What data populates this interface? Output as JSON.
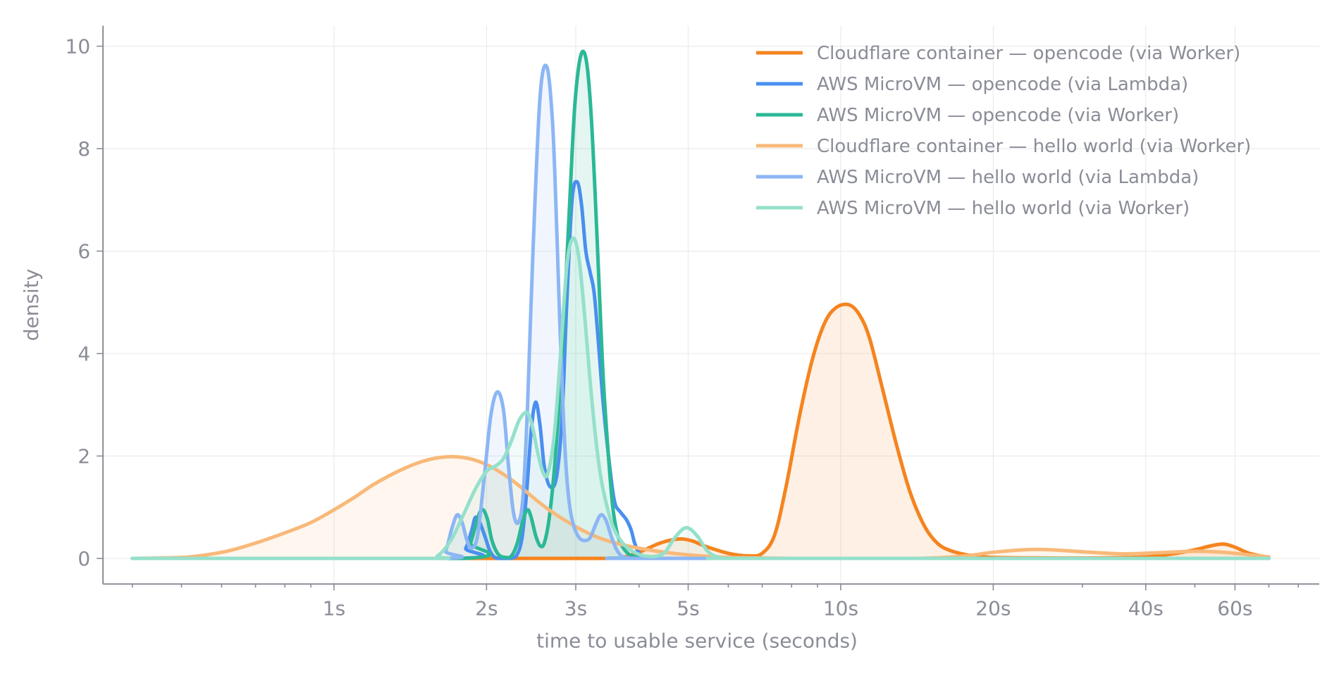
{
  "chart_data": {
    "type": "area",
    "title": "",
    "xlabel": "time to usable service (seconds)",
    "ylabel": "density",
    "x_scale": "log",
    "xlim": [
      0.35,
      88
    ],
    "ylim": [
      -0.5,
      10.4
    ],
    "x_ticks": [
      {
        "value": 1,
        "label": "1s"
      },
      {
        "value": 2,
        "label": "2s"
      },
      {
        "value": 3,
        "label": "3s"
      },
      {
        "value": 5,
        "label": "5s"
      },
      {
        "value": 10,
        "label": "10s"
      },
      {
        "value": 20,
        "label": "20s"
      },
      {
        "value": 40,
        "label": "40s"
      },
      {
        "value": 60,
        "label": "60s"
      }
    ],
    "y_ticks": [
      {
        "value": 0,
        "label": "0"
      },
      {
        "value": 2,
        "label": "2"
      },
      {
        "value": 4,
        "label": "4"
      },
      {
        "value": 6,
        "label": "6"
      },
      {
        "value": 8,
        "label": "8"
      },
      {
        "value": 10,
        "label": "10"
      }
    ],
    "grid": true,
    "legend_position": "top-right",
    "series": [
      {
        "name": "Cloudflare container — opencode (via Worker)",
        "color": "#f5841f",
        "width": 5,
        "fill": true,
        "x": [
          0.4,
          3.5,
          3.7,
          4.0,
          4.4,
          4.8,
          5.1,
          5.4,
          6.0,
          6.6,
          7.0,
          7.4,
          7.8,
          8.3,
          8.8,
          9.3,
          9.8,
          10.4,
          10.9,
          11.4,
          12.1,
          12.9,
          13.7,
          14.6,
          15.5,
          16.5,
          18.0,
          20.0,
          25.0,
          32.0,
          40.0,
          46.0,
          50.0,
          54.0,
          57.0,
          60.0,
          64.0,
          70.0
        ],
        "y": [
          0,
          0,
          0.02,
          0.12,
          0.3,
          0.38,
          0.34,
          0.24,
          0.1,
          0.05,
          0.1,
          0.45,
          1.4,
          2.8,
          3.9,
          4.6,
          4.9,
          4.95,
          4.75,
          4.3,
          3.3,
          2.2,
          1.3,
          0.65,
          0.3,
          0.15,
          0.06,
          0.02,
          0.01,
          0.01,
          0.03,
          0.1,
          0.17,
          0.25,
          0.28,
          0.22,
          0.1,
          0.02
        ]
      },
      {
        "name": "AWS MicroVM — opencode (via Lambda)",
        "color": "#4a8ff0",
        "width": 5,
        "fill": false,
        "x": [
          0.4,
          1.75,
          1.82,
          1.87,
          1.9,
          1.94,
          1.99,
          2.03,
          2.07,
          2.12,
          2.17,
          2.22,
          2.29,
          2.35,
          2.4,
          2.45,
          2.5,
          2.55,
          2.6,
          2.67,
          2.75,
          2.82,
          2.88,
          2.95,
          3.02,
          3.08,
          3.14,
          3.2,
          3.26,
          3.32,
          3.4,
          3.5,
          3.58,
          3.68,
          3.78,
          3.86,
          3.92,
          4.0,
          4.1,
          4.2,
          4.3,
          4.45,
          4.6,
          4.8,
          5.0,
          5.5,
          70.0
        ],
        "y": [
          0,
          0,
          0.2,
          0.55,
          0.8,
          0.7,
          0.4,
          0.15,
          0.03,
          0,
          0,
          0,
          0.05,
          0.4,
          1.3,
          2.5,
          3.05,
          2.6,
          1.8,
          1.4,
          1.6,
          2.8,
          5.0,
          7.0,
          7.35,
          6.9,
          6.0,
          5.6,
          5.2,
          4.3,
          3.0,
          1.8,
          1.1,
          0.9,
          0.75,
          0.55,
          0.3,
          0.1,
          0.02,
          0,
          0,
          0,
          0,
          0,
          0,
          0,
          0
        ]
      },
      {
        "name": "AWS MicroVM — opencode (via Worker)",
        "color": "#2bb896",
        "width": 5,
        "fill": true,
        "x": [
          0.4,
          1.8,
          1.86,
          1.91,
          1.94,
          1.97,
          2.01,
          2.05,
          2.11,
          2.18,
          2.24,
          2.3,
          2.36,
          2.41,
          2.45,
          2.5,
          2.55,
          2.6,
          2.66,
          2.73,
          2.8,
          2.86,
          2.92,
          2.98,
          3.04,
          3.1,
          3.16,
          3.22,
          3.28,
          3.34,
          3.4,
          3.48,
          3.55,
          3.62,
          3.7,
          3.8,
          3.9,
          4.0,
          4.15,
          4.3,
          70.0
        ],
        "y": [
          0,
          0,
          0.3,
          0.7,
          0.9,
          0.95,
          0.75,
          0.35,
          0.08,
          0.02,
          0.05,
          0.3,
          0.75,
          0.95,
          0.8,
          0.45,
          0.25,
          0.3,
          0.8,
          1.9,
          3.5,
          5.2,
          7.0,
          8.7,
          9.6,
          9.9,
          9.6,
          8.6,
          7.0,
          5.2,
          3.5,
          2.0,
          1.0,
          0.5,
          0.25,
          0.1,
          0.04,
          0.02,
          0.01,
          0,
          0
        ]
      },
      {
        "name": "Cloudflare container — hello world (via Worker)",
        "color": "#f8b979",
        "width": 5,
        "fill": true,
        "x": [
          0.4,
          0.5,
          0.55,
          0.62,
          0.7,
          0.8,
          0.9,
          1.0,
          1.1,
          1.2,
          1.35,
          1.5,
          1.65,
          1.8,
          1.95,
          2.1,
          2.3,
          2.5,
          2.7,
          3.0,
          3.3,
          3.6,
          4.0,
          4.5,
          5.0,
          5.5,
          6.0,
          7.0,
          8.0,
          10.0,
          12.0,
          14.0,
          16.0,
          18.0,
          20.0,
          23.0,
          26.0,
          30.0,
          36.0,
          42.0,
          50.0,
          57.0,
          64.0,
          70.0
        ],
        "y": [
          0,
          0.02,
          0.06,
          0.15,
          0.3,
          0.5,
          0.7,
          0.95,
          1.2,
          1.45,
          1.72,
          1.9,
          1.98,
          1.97,
          1.88,
          1.72,
          1.45,
          1.15,
          0.9,
          0.62,
          0.42,
          0.3,
          0.2,
          0.12,
          0.07,
          0.04,
          0.02,
          0.01,
          0,
          0,
          0,
          0,
          0.02,
          0.06,
          0.12,
          0.17,
          0.17,
          0.13,
          0.09,
          0.11,
          0.14,
          0.12,
          0.07,
          0.03
        ]
      },
      {
        "name": "AWS MicroVM — hello world (via Lambda)",
        "color": "#8cb6f4",
        "width": 5,
        "fill": true,
        "x": [
          0.4,
          1.6,
          1.66,
          1.71,
          1.75,
          1.79,
          1.83,
          1.87,
          1.92,
          1.98,
          2.04,
          2.1,
          2.16,
          2.21,
          2.26,
          2.31,
          2.36,
          2.41,
          2.47,
          2.55,
          2.63,
          2.7,
          2.75,
          2.79,
          2.83,
          2.87,
          2.92,
          2.98,
          3.05,
          3.12,
          3.2,
          3.28,
          3.36,
          3.44,
          3.52,
          3.6,
          3.68,
          3.76,
          3.86,
          3.96,
          4.1,
          4.3,
          70.0
        ],
        "y": [
          0,
          0,
          0.15,
          0.6,
          0.85,
          0.7,
          0.35,
          0.2,
          0.45,
          1.6,
          2.8,
          3.25,
          2.9,
          1.8,
          0.9,
          0.7,
          1.2,
          3.0,
          6.0,
          9.0,
          9.6,
          8.5,
          6.5,
          4.6,
          3.0,
          1.8,
          1.0,
          0.6,
          0.4,
          0.35,
          0.4,
          0.65,
          0.85,
          0.75,
          0.45,
          0.2,
          0.06,
          0.02,
          0,
          0,
          0,
          0,
          0
        ]
      },
      {
        "name": "AWS MicroVM — hello world (via Worker)",
        "color": "#95e0cb",
        "width": 5,
        "fill": true,
        "x": [
          0.4,
          1.5,
          1.6,
          1.7,
          1.8,
          1.9,
          2.0,
          2.08,
          2.16,
          2.24,
          2.32,
          2.4,
          2.46,
          2.52,
          2.58,
          2.64,
          2.72,
          2.8,
          2.88,
          2.96,
          3.04,
          3.12,
          3.2,
          3.28,
          3.36,
          3.46,
          3.56,
          3.68,
          3.8,
          3.95,
          4.1,
          4.3,
          4.5,
          4.7,
          4.95,
          5.2,
          5.45,
          5.7,
          5.95,
          6.25,
          6.6,
          70.0
        ],
        "y": [
          0,
          0,
          0.05,
          0.35,
          0.85,
          1.35,
          1.7,
          1.8,
          1.95,
          2.3,
          2.7,
          2.85,
          2.6,
          2.1,
          1.7,
          1.65,
          2.4,
          4.0,
          5.7,
          6.25,
          5.9,
          4.8,
          3.5,
          2.4,
          1.6,
          1.0,
          0.6,
          0.35,
          0.2,
          0.1,
          0.05,
          0.04,
          0.12,
          0.4,
          0.6,
          0.45,
          0.15,
          0.03,
          0,
          0,
          0,
          0
        ]
      }
    ]
  }
}
